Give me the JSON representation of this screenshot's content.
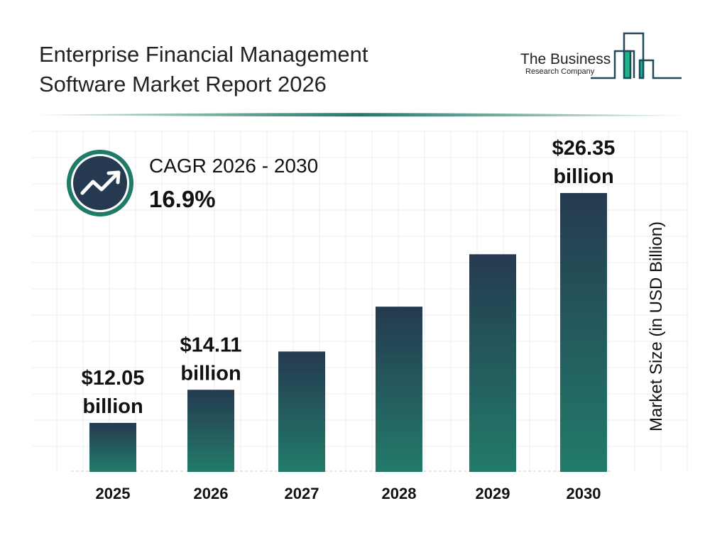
{
  "header": {
    "title_line1": "Enterprise Financial Management",
    "title_line2": "Software Market Report 2026"
  },
  "logo": {
    "line1": "The Business",
    "line2": "Research Company"
  },
  "cagr": {
    "label": "CAGR 2026 - 2030",
    "value": "16.9%",
    "icon": "trending-up-icon"
  },
  "colors": {
    "bar_top": "#253a50",
    "bar_bottom": "#227b6a",
    "accent": "#1f7a66",
    "grid": "#e6e8ec"
  },
  "chart_data": {
    "type": "bar",
    "categories": [
      "2025",
      "2026",
      "2027",
      "2028",
      "2029",
      "2030"
    ],
    "values": [
      12.05,
      14.11,
      16.49,
      19.28,
      22.54,
      26.35
    ],
    "data_labels": [
      {
        "index": 0,
        "line1": "$12.05",
        "line2": "billion"
      },
      {
        "index": 1,
        "line1": "$14.11",
        "line2": "billion"
      },
      {
        "index": 5,
        "line1": "$26.35",
        "line2": "billion"
      }
    ],
    "xlabel": "",
    "ylabel": "Market Size (in USD Billion)",
    "grid": true
  }
}
